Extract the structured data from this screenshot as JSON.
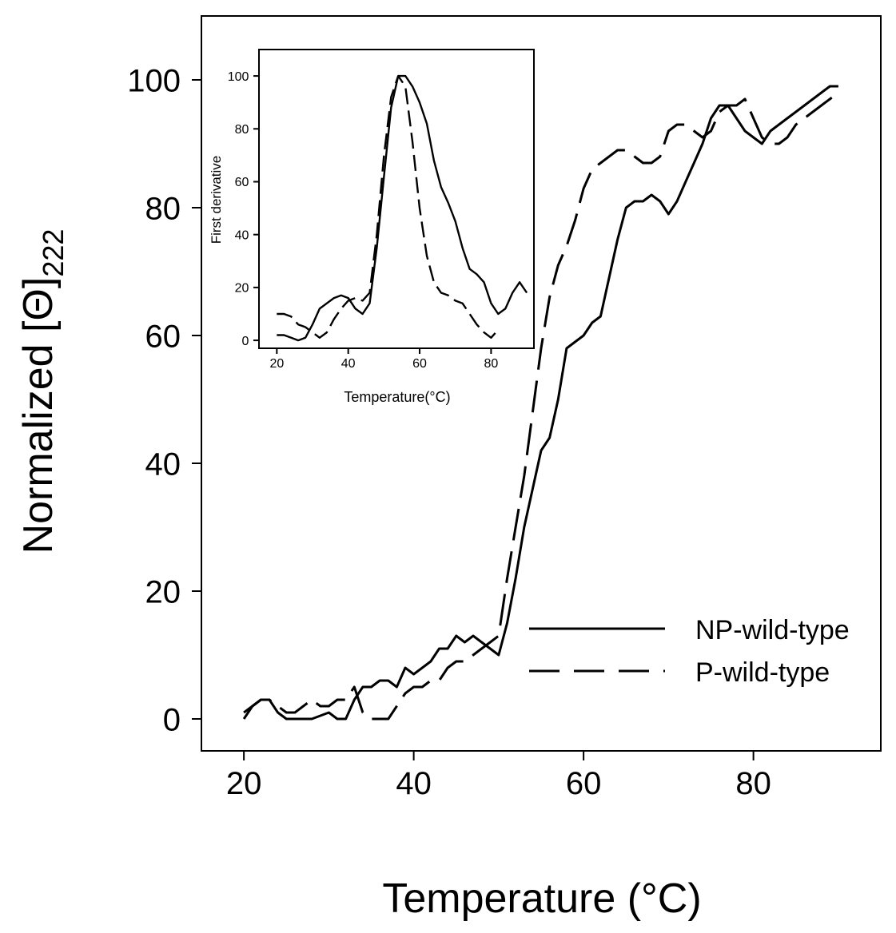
{
  "colors": {
    "line": "#000000",
    "background": "#ffffff"
  },
  "chart_data": [
    {
      "type": "line",
      "role": "main",
      "xlabel": "Temperature (°C)",
      "ylabel_prefix": "Normalized [",
      "ylabel_symbol": "Θ",
      "ylabel_suffix": "]",
      "ylabel_subscript": "222",
      "xlim": [
        15,
        95
      ],
      "ylim": [
        -5,
        110
      ],
      "xticks": [
        20,
        40,
        60,
        80
      ],
      "yticks": [
        0,
        20,
        40,
        60,
        80,
        100
      ],
      "grid": false,
      "legend": {
        "placement": "bottom-right",
        "entries": [
          {
            "label": "NP-wild-type",
            "style": "solid"
          },
          {
            "label": "P-wild-type",
            "style": "dashed"
          }
        ]
      },
      "series": [
        {
          "name": "NP-wild-type",
          "style": "solid",
          "x": [
            20,
            21,
            22,
            23,
            24,
            25,
            26,
            27,
            28,
            29,
            30,
            31,
            32,
            33,
            34,
            35,
            36,
            37,
            38,
            39,
            40,
            41,
            42,
            43,
            44,
            45,
            46,
            47,
            48,
            49,
            50,
            51,
            52,
            53,
            54,
            55,
            56,
            57,
            58,
            59,
            60,
            61,
            62,
            63,
            64,
            65,
            66,
            67,
            68,
            69,
            70,
            71,
            72,
            73,
            74,
            75,
            76,
            77,
            78,
            79,
            80,
            81,
            82,
            83,
            84,
            85,
            86,
            87,
            88,
            89,
            90
          ],
          "y": [
            0,
            2,
            3,
            3,
            1,
            0,
            0,
            0,
            0,
            0.5,
            1,
            0,
            0,
            3,
            5,
            5,
            6,
            6,
            5,
            8,
            7,
            8,
            9,
            11,
            11,
            13,
            12,
            13,
            12,
            11,
            10,
            15,
            22,
            30,
            36,
            42,
            44,
            50,
            58,
            59,
            60,
            62,
            63,
            69,
            75,
            80,
            81,
            81,
            82,
            81,
            79,
            81,
            84,
            87,
            90,
            94,
            96,
            96,
            94,
            92,
            91,
            90,
            92,
            93,
            94,
            95,
            96,
            97,
            98,
            99,
            99
          ]
        },
        {
          "name": "P-wild-type",
          "style": "dashed",
          "x": [
            20,
            21,
            22,
            23,
            24,
            25,
            26,
            27,
            28,
            29,
            30,
            31,
            32,
            33,
            34,
            35,
            36,
            37,
            38,
            39,
            40,
            41,
            42,
            43,
            44,
            45,
            46,
            47,
            48,
            49,
            50,
            51,
            52,
            53,
            54,
            55,
            56,
            57,
            58,
            59,
            60,
            61,
            62,
            63,
            64,
            65,
            66,
            67,
            68,
            69,
            70,
            71,
            72,
            73,
            74,
            75,
            76,
            77,
            78,
            79,
            80,
            81,
            82,
            83,
            84,
            85,
            86,
            87,
            88,
            89,
            90
          ],
          "y": [
            1,
            2,
            3,
            3,
            2,
            1,
            1,
            2,
            3,
            2,
            2,
            3,
            3,
            5,
            1,
            0,
            0,
            0,
            2,
            4,
            5,
            5,
            6,
            6,
            8,
            9,
            9,
            10,
            11,
            12,
            13,
            22,
            30,
            38,
            48,
            58,
            66,
            71,
            74,
            78,
            83,
            86,
            87,
            88,
            89,
            89,
            88,
            87,
            87,
            88,
            92,
            93,
            93,
            92,
            91,
            92,
            95,
            96,
            96,
            97,
            94,
            91,
            90,
            90,
            91,
            93,
            94,
            95,
            96,
            97,
            98
          ]
        }
      ]
    },
    {
      "type": "line",
      "role": "inset",
      "xlabel": "Temperature(°C)",
      "ylabel": "First derivative",
      "xlim": [
        15,
        92
      ],
      "ylim": [
        -3,
        110
      ],
      "xticks": [
        20,
        40,
        60,
        80
      ],
      "yticks": [
        0,
        20,
        40,
        60,
        80,
        100
      ],
      "grid": false,
      "series": [
        {
          "name": "NP-wild-type",
          "style": "solid",
          "x": [
            20,
            22,
            24,
            26,
            28,
            30,
            32,
            34,
            36,
            38,
            40,
            42,
            44,
            46,
            48,
            50,
            52,
            54,
            56,
            58,
            60,
            62,
            64,
            66,
            68,
            70,
            72,
            74,
            76,
            78,
            80,
            82,
            84,
            86,
            88,
            90
          ],
          "y": [
            2,
            2,
            1,
            0,
            1,
            6,
            12,
            14,
            16,
            17,
            16,
            12,
            10,
            14,
            35,
            62,
            88,
            100,
            100,
            96,
            90,
            82,
            68,
            58,
            52,
            45,
            35,
            27,
            25,
            22,
            14,
            10,
            12,
            18,
            22,
            18
          ]
        },
        {
          "name": "P-wild-type",
          "style": "dashed",
          "x": [
            20,
            22,
            24,
            26,
            28,
            30,
            32,
            34,
            36,
            38,
            40,
            42,
            44,
            46,
            48,
            50,
            52,
            54,
            56,
            58,
            60,
            62,
            64,
            66,
            68,
            70,
            72,
            74,
            76,
            78,
            80,
            82
          ],
          "y": [
            10,
            10,
            9,
            6,
            5,
            3,
            1,
            3,
            8,
            12,
            15,
            16,
            15,
            18,
            40,
            70,
            92,
            100,
            96,
            75,
            50,
            32,
            22,
            18,
            17,
            15,
            14,
            10,
            6,
            3,
            1,
            4
          ]
        }
      ]
    }
  ]
}
